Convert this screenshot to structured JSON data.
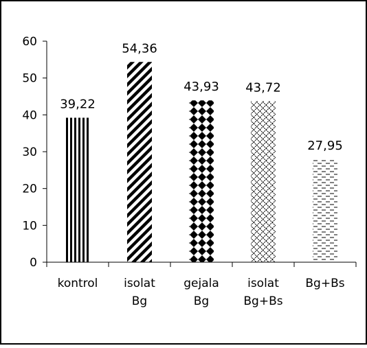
{
  "chart_data": {
    "type": "bar",
    "categories": [
      [
        "kontrol"
      ],
      [
        "isolat",
        "Bg"
      ],
      [
        "gejala",
        "Bg"
      ],
      [
        "isolat",
        "Bg+Bs"
      ],
      [
        "Bg+Bs"
      ]
    ],
    "values": [
      39.22,
      54.36,
      43.93,
      43.72,
      27.95
    ],
    "data_labels": [
      "39,22",
      "54,36",
      "43,93",
      "43,72",
      "27,95"
    ],
    "y_ticks": [
      "0",
      "10",
      "20",
      "30",
      "40",
      "50",
      "60"
    ],
    "ylim": [
      0,
      60
    ],
    "patterns": [
      "vertical-stripes",
      "diagonal-stripes",
      "diamond-dots",
      "crosshatch",
      "dashed-lines"
    ],
    "colors": {
      "ink": "#000000",
      "background": "#ffffff"
    },
    "title": "",
    "xlabel": "",
    "ylabel": "",
    "grid": false,
    "legend": "none"
  }
}
